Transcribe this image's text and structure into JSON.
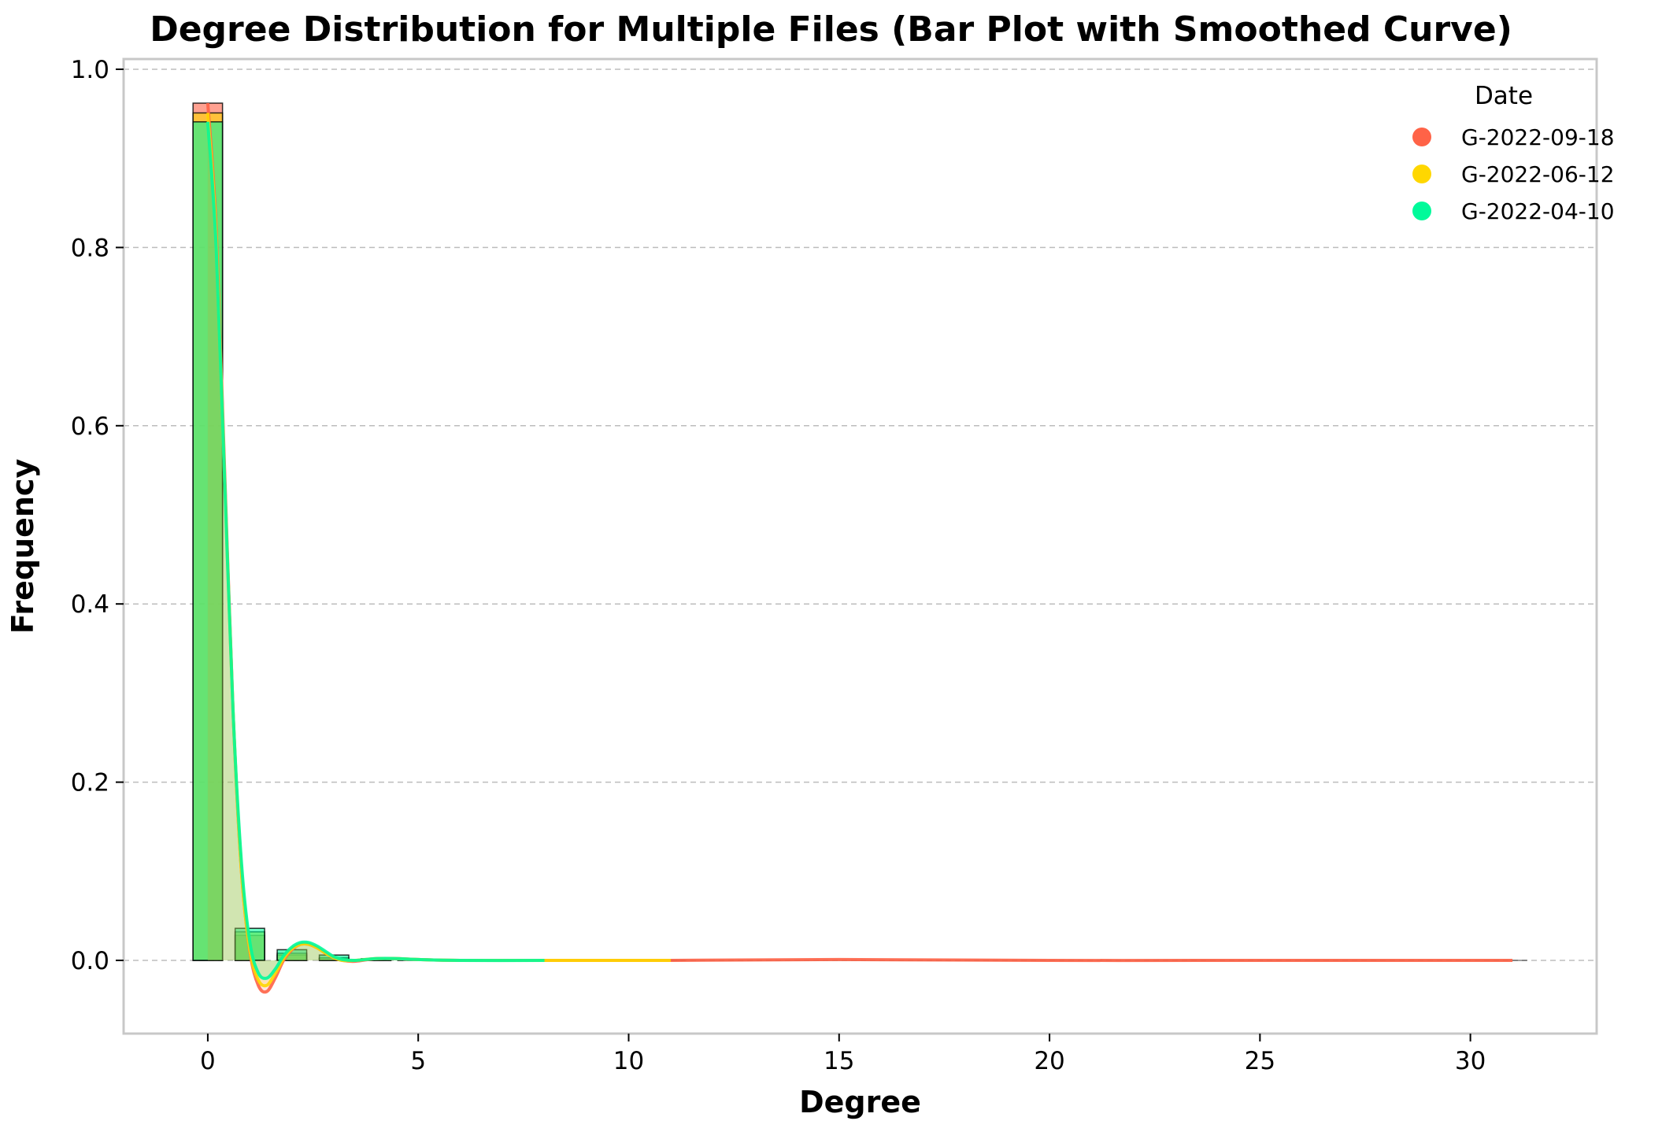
{
  "chart_data": {
    "type": "bar",
    "title": "Degree Distribution for Multiple Files (Bar Plot with Smoothed Curve)",
    "xlabel": "Degree",
    "ylabel": "Frequency",
    "xlim": [
      -2,
      28
    ],
    "ylim": [
      -0.082,
      1.0
    ],
    "xticks": [
      0,
      5,
      10,
      15,
      20,
      25,
      30
    ],
    "yticks": [
      0.0,
      0.2,
      0.4,
      0.6,
      0.8,
      1.0
    ],
    "xtick_labels": [
      "0",
      "5",
      "10",
      "15",
      "20",
      "25",
      "30"
    ],
    "ytick_labels": [
      "0.0",
      "0.2",
      "0.4",
      "0.6",
      "0.8",
      "1.0"
    ],
    "grid": "y-dashed",
    "legend_title": "Date",
    "legend_position": "top-right",
    "series": [
      {
        "name": "G-2022-09-18",
        "color": "#FF6347",
        "max_degree": 31,
        "bars": [
          [
            0,
            0.962
          ],
          [
            1,
            0.028
          ],
          [
            2,
            0.006
          ],
          [
            3,
            0.002
          ],
          [
            4,
            0.001
          ]
        ],
        "curve": [
          [
            0,
            0.962
          ],
          [
            0.2,
            0.82
          ],
          [
            0.4,
            0.55
          ],
          [
            0.6,
            0.28
          ],
          [
            0.8,
            0.1
          ],
          [
            1.0,
            0.01
          ],
          [
            1.2,
            -0.028
          ],
          [
            1.4,
            -0.035
          ],
          [
            1.6,
            -0.02
          ],
          [
            1.8,
            0.0
          ],
          [
            2.0,
            0.012
          ],
          [
            2.2,
            0.018
          ],
          [
            2.4,
            0.018
          ],
          [
            2.6,
            0.014
          ],
          [
            2.8,
            0.008
          ],
          [
            3.0,
            0.003
          ],
          [
            3.2,
            0.0
          ],
          [
            3.5,
            -0.001
          ],
          [
            4.0,
            0.002
          ],
          [
            4.5,
            0.002
          ],
          [
            5,
            0.001
          ],
          [
            6,
            0.0
          ],
          [
            8,
            0.0
          ],
          [
            11,
            0.0
          ],
          [
            15,
            0.001
          ],
          [
            20,
            0.0
          ],
          [
            25,
            0.0
          ],
          [
            31,
            0.0
          ]
        ]
      },
      {
        "name": "G-2022-06-12",
        "color": "#FFD700",
        "max_degree": 11,
        "bars": [
          [
            0,
            0.951
          ],
          [
            1,
            0.032
          ],
          [
            2,
            0.008
          ],
          [
            3,
            0.003
          ],
          [
            4,
            0.001
          ]
        ],
        "curve": [
          [
            0,
            0.951
          ],
          [
            0.2,
            0.81
          ],
          [
            0.4,
            0.54
          ],
          [
            0.6,
            0.28
          ],
          [
            0.8,
            0.1
          ],
          [
            1.0,
            0.012
          ],
          [
            1.2,
            -0.022
          ],
          [
            1.4,
            -0.028
          ],
          [
            1.6,
            -0.015
          ],
          [
            1.8,
            0.002
          ],
          [
            2.0,
            0.013
          ],
          [
            2.2,
            0.018
          ],
          [
            2.4,
            0.018
          ],
          [
            2.6,
            0.014
          ],
          [
            2.8,
            0.008
          ],
          [
            3.0,
            0.003
          ],
          [
            3.2,
            0.0
          ],
          [
            3.5,
            0.0
          ],
          [
            4.0,
            0.002
          ],
          [
            4.5,
            0.002
          ],
          [
            5,
            0.001
          ],
          [
            6,
            0.0
          ],
          [
            8,
            0.0
          ],
          [
            11,
            0.0
          ]
        ]
      },
      {
        "name": "G-2022-04-10",
        "color": "#00FA9A",
        "max_degree": 8,
        "bars": [
          [
            0,
            0.941
          ],
          [
            1,
            0.036
          ],
          [
            2,
            0.012
          ],
          [
            3,
            0.006
          ],
          [
            4,
            0.002
          ]
        ],
        "curve": [
          [
            0,
            0.941
          ],
          [
            0.2,
            0.8
          ],
          [
            0.4,
            0.54
          ],
          [
            0.6,
            0.28
          ],
          [
            0.8,
            0.11
          ],
          [
            1.0,
            0.02
          ],
          [
            1.2,
            -0.014
          ],
          [
            1.4,
            -0.02
          ],
          [
            1.6,
            -0.01
          ],
          [
            1.8,
            0.005
          ],
          [
            2.0,
            0.015
          ],
          [
            2.2,
            0.02
          ],
          [
            2.4,
            0.02
          ],
          [
            2.6,
            0.016
          ],
          [
            2.8,
            0.01
          ],
          [
            3.0,
            0.004
          ],
          [
            3.2,
            0.001
          ],
          [
            3.5,
            0.0
          ],
          [
            4.0,
            0.002
          ],
          [
            4.5,
            0.002
          ],
          [
            5,
            0.001
          ],
          [
            6,
            0.0
          ],
          [
            8,
            0.0
          ]
        ]
      }
    ]
  }
}
